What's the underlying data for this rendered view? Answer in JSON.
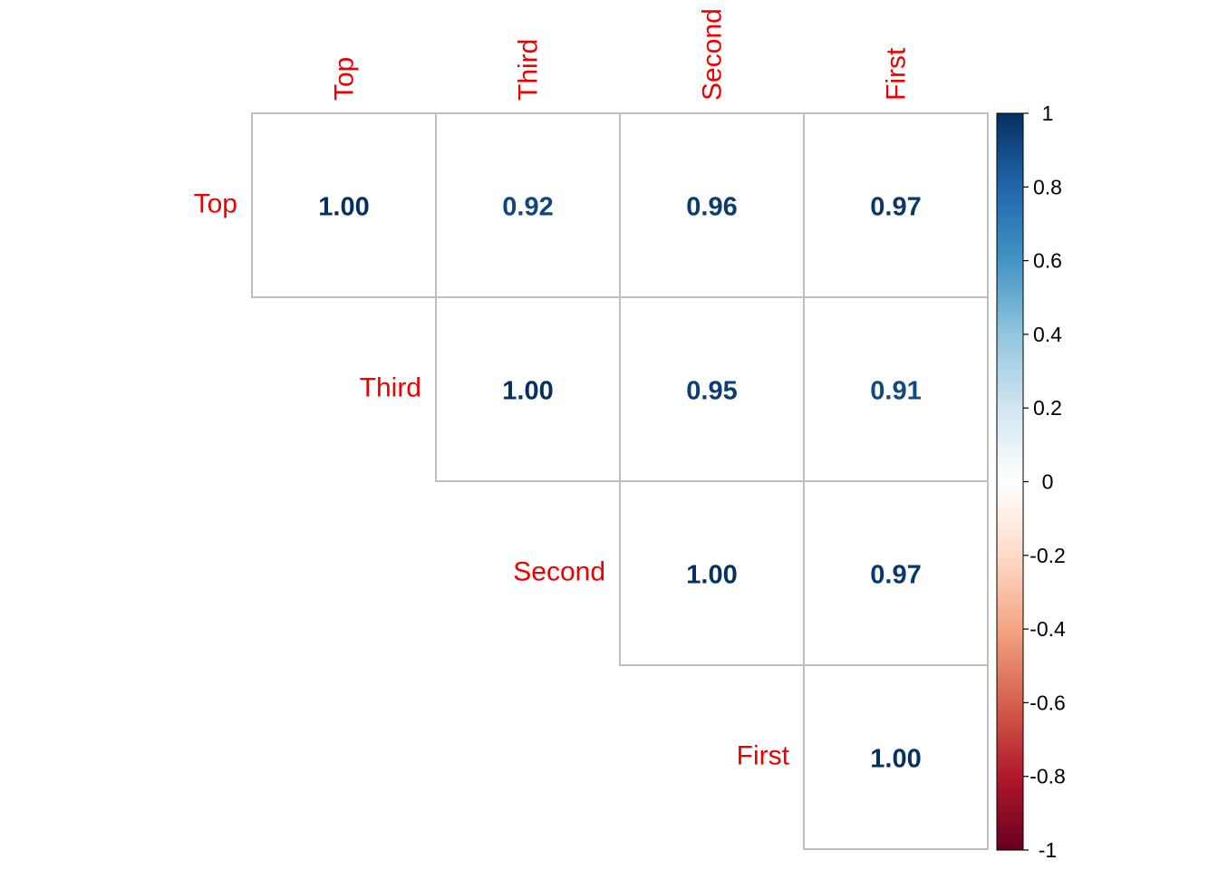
{
  "chart_data": {
    "type": "heatmap",
    "subtype": "correlation-matrix-upper",
    "variables": [
      "Top",
      "Third",
      "Second",
      "First"
    ],
    "matrix": [
      [
        1.0,
        0.92,
        0.96,
        0.97
      ],
      [
        null,
        1.0,
        0.95,
        0.91
      ],
      [
        null,
        null,
        1.0,
        0.97
      ],
      [
        null,
        null,
        null,
        1.0
      ]
    ],
    "value_labels": [
      [
        "1.00",
        "0.92",
        "0.96",
        "0.97"
      ],
      [
        null,
        "1.00",
        "0.95",
        "0.91"
      ],
      [
        null,
        null,
        "1.00",
        "0.97"
      ],
      [
        null,
        null,
        null,
        "1.00"
      ]
    ],
    "colorbar": {
      "range": [
        -1,
        1
      ],
      "ticks": [
        1,
        0.8,
        0.6,
        0.4,
        0.2,
        0,
        -0.2,
        -0.4,
        -0.6,
        -0.8,
        -1
      ],
      "tick_labels": [
        "1",
        "0.8",
        "0.6",
        "0.4",
        "0.2",
        "0",
        "-0.2",
        "-0.4",
        "-0.6",
        "-0.8",
        "-1"
      ],
      "colors": [
        "#67001F",
        "#B2182B",
        "#D6604D",
        "#F4A582",
        "#FDDBC7",
        "#FFFFFF",
        "#D1E5F0",
        "#92C5DE",
        "#4393C3",
        "#2166AC",
        "#053061"
      ]
    },
    "label_color": "#EE0000",
    "grid_color": "#BEBEBE",
    "cell_background": "#FFFFFF"
  }
}
